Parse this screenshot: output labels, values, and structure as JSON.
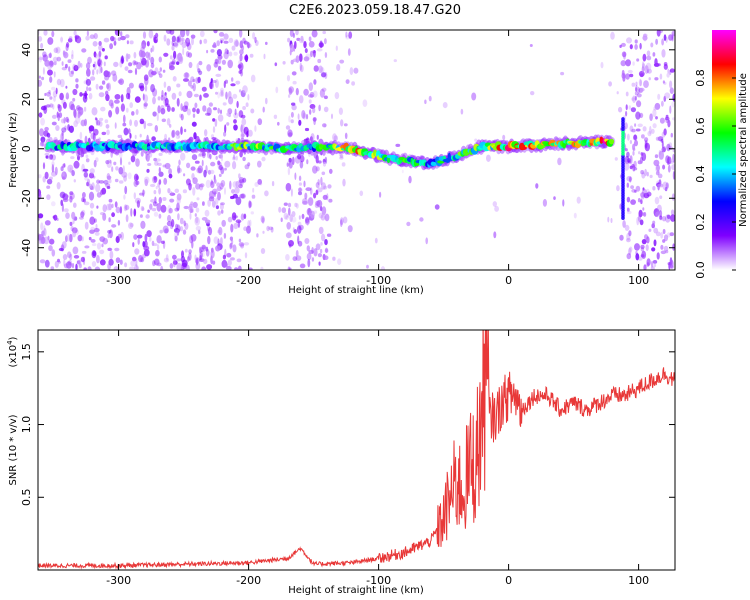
{
  "title": "C2E6.2023.059.18.47.G20",
  "chart_data": [
    {
      "type": "heatmap",
      "xlabel": "Height of straight line (km)",
      "ylabel": "Frequency (Hz)",
      "xlim": [
        -362,
        128
      ],
      "ylim": [
        -49,
        48
      ],
      "x_ticks": [
        -300,
        -200,
        -100,
        0,
        100
      ],
      "y_ticks": [
        -40,
        -20,
        0,
        20,
        40
      ],
      "colorbar": {
        "label": "Normalized spectral amplitude",
        "range": [
          0,
          1
        ],
        "ticks": [
          0.0,
          0.2,
          0.4,
          0.6,
          0.8
        ],
        "tick_labels": [
          "0.0",
          "0.2",
          "0.4",
          "0.6",
          "0.8"
        ],
        "colormap": [
          "#ffffff",
          "#7f00ff",
          "#0000ff",
          "#00ffff",
          "#00ff00",
          "#ffff00",
          "#ff0000",
          "#ff00ff"
        ]
      },
      "ridge": [
        {
          "x": -355,
          "y": 1,
          "amp": 0.5
        },
        {
          "x": -300,
          "y": 1,
          "amp": 0.45
        },
        {
          "x": -250,
          "y": 1,
          "amp": 0.5
        },
        {
          "x": -200,
          "y": 1,
          "amp": 0.65
        },
        {
          "x": -170,
          "y": 0,
          "amp": 0.6
        },
        {
          "x": -150,
          "y": 1,
          "amp": 0.55
        },
        {
          "x": -120,
          "y": 0,
          "amp": 0.8
        },
        {
          "x": -90,
          "y": -4,
          "amp": 0.6
        },
        {
          "x": -60,
          "y": -6,
          "amp": 0.5
        },
        {
          "x": -40,
          "y": -3,
          "amp": 0.6
        },
        {
          "x": -20,
          "y": 1,
          "amp": 0.65
        },
        {
          "x": 0,
          "y": 1,
          "amp": 0.85
        },
        {
          "x": 40,
          "y": 2,
          "amp": 0.75
        },
        {
          "x": 80,
          "y": 3,
          "amp": 0.9
        }
      ],
      "broadband_bands": [
        [
          -362,
          -330
        ],
        [
          -330,
          -200
        ],
        [
          -170,
          -140
        ],
        [
          88,
          128
        ]
      ]
    },
    {
      "type": "line",
      "xlabel": "Height of straight line (km)",
      "ylabel": "SNR (10 * v/v)",
      "multiplier": "(x10",
      "multiplier_exp": "4",
      "multiplier_close": ")",
      "xlim": [
        -362,
        128
      ],
      "ylim": [
        0,
        1.65
      ],
      "x_ticks": [
        -300,
        -200,
        -100,
        0,
        100
      ],
      "y_ticks": [
        0.5,
        1.0,
        1.5
      ],
      "y_tick_labels": [
        "0.5",
        "1.0",
        "1.5"
      ],
      "color": "#e83838",
      "x": [
        -362,
        -300,
        -200,
        -170,
        -160,
        -150,
        -120,
        -100,
        -80,
        -60,
        -50,
        -45,
        -40,
        -35,
        -30,
        -25,
        -20,
        -18,
        -15,
        -10,
        -5,
        0,
        5,
        10,
        20,
        30,
        40,
        50,
        60,
        70,
        80,
        90,
        100,
        110,
        120,
        128
      ],
      "y": [
        0.03,
        0.03,
        0.05,
        0.08,
        0.15,
        0.04,
        0.05,
        0.08,
        0.12,
        0.2,
        0.35,
        0.5,
        0.6,
        0.55,
        0.7,
        0.75,
        1.1,
        1.4,
        1.05,
        1.05,
        1.15,
        1.2,
        1.2,
        1.1,
        1.2,
        1.2,
        1.1,
        1.15,
        1.1,
        1.15,
        1.2,
        1.2,
        1.25,
        1.3,
        1.35,
        1.3
      ]
    }
  ]
}
